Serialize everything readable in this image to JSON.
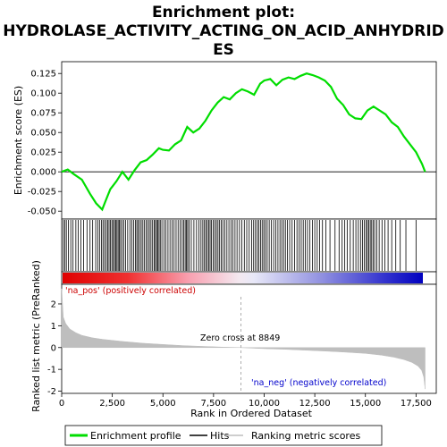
{
  "chart_data": {
    "type": "line",
    "title_lines": [
      "Enrichment plot:",
      "HYDROLASE_ACTIVITY_ACTING_ON_ACID_ANHYDRID",
      "ES"
    ],
    "ylabel_top": "Enrichment score (ES)",
    "ylabel_bottom": "Ranked list metric (PreRanked)",
    "xlabel": "Rank in Ordered Dataset",
    "xlim": [
      0,
      18500
    ],
    "ylim_es": [
      -0.06,
      0.14
    ],
    "ylim_metric": [
      -2.1,
      2.9
    ],
    "x_ticks": [
      0,
      2500,
      5000,
      7500,
      10000,
      12500,
      15000,
      17500
    ],
    "x_tick_labels": [
      "0",
      "2,500",
      "5,000",
      "7,500",
      "10,000",
      "12,500",
      "15,000",
      "17,500"
    ],
    "es_ticks": [
      -0.05,
      -0.025,
      0.0,
      0.025,
      0.05,
      0.075,
      0.1,
      0.125
    ],
    "es_tick_labels": [
      "-0.050",
      "-0.025",
      "0.000",
      "0.025",
      "0.050",
      "0.075",
      "0.100",
      "0.125"
    ],
    "metric_ticks": [
      -2,
      -1,
      0,
      1,
      2
    ],
    "metric_tick_labels": [
      "-2",
      "-1",
      "0",
      "1",
      "2"
    ],
    "enrichment_profile": {
      "name": "Enrichment profile",
      "color": "#00dd00",
      "x": [
        0,
        300,
        600,
        1000,
        1400,
        1700,
        2000,
        2200,
        2400,
        2700,
        3000,
        3300,
        3600,
        3900,
        4200,
        4500,
        4800,
        5000,
        5300,
        5600,
        5900,
        6200,
        6500,
        6800,
        7100,
        7400,
        7700,
        8000,
        8300,
        8600,
        8900,
        9200,
        9500,
        9800,
        10000,
        10300,
        10600,
        10900,
        11200,
        11500,
        11800,
        12100,
        12400,
        12700,
        13000,
        13300,
        13600,
        13900,
        14200,
        14500,
        14800,
        15100,
        15400,
        15700,
        16000,
        16300,
        16600,
        16900,
        17200,
        17500,
        17800,
        17950
      ],
      "y": [
        0.0,
        0.003,
        -0.003,
        -0.01,
        -0.028,
        -0.04,
        -0.048,
        -0.035,
        -0.022,
        -0.012,
        0.0,
        -0.01,
        0.002,
        0.012,
        0.015,
        0.022,
        0.03,
        0.028,
        0.027,
        0.035,
        0.04,
        0.057,
        0.05,
        0.055,
        0.065,
        0.078,
        0.088,
        0.095,
        0.092,
        0.1,
        0.105,
        0.102,
        0.098,
        0.112,
        0.116,
        0.118,
        0.11,
        0.117,
        0.12,
        0.118,
        0.122,
        0.125,
        0.123,
        0.12,
        0.116,
        0.108,
        0.093,
        0.085,
        0.073,
        0.068,
        0.067,
        0.078,
        0.083,
        0.078,
        0.073,
        0.063,
        0.057,
        0.045,
        0.035,
        0.025,
        0.01,
        0.0
      ]
    },
    "hits": {
      "name": "Hits",
      "color": "#000000",
      "positions": [
        80,
        150,
        230,
        330,
        450,
        560,
        700,
        820,
        950,
        1080,
        1250,
        1400,
        1530,
        1680,
        1780,
        1870,
        1960,
        2040,
        2120,
        2200,
        2270,
        2340,
        2410,
        2480,
        2550,
        2610,
        2670,
        2730,
        2790,
        2850,
        2910,
        2990,
        3070,
        3160,
        3260,
        3370,
        3470,
        3560,
        3640,
        3710,
        3780,
        3850,
        3930,
        4010,
        4090,
        4170,
        4250,
        4330,
        4410,
        4490,
        4570,
        4630,
        4690,
        4750,
        4810,
        4870,
        4950,
        5050,
        5150,
        5250,
        5350,
        5450,
        5550,
        5650,
        5750,
        5850,
        5950,
        6030,
        6100,
        6160,
        6220,
        6290,
        6400,
        6530,
        6660,
        6780,
        6880,
        6970,
        7050,
        7120,
        7190,
        7260,
        7330,
        7400,
        7480,
        7560,
        7640,
        7720,
        7800,
        7880,
        7960,
        8060,
        8160,
        8260,
        8360,
        8460,
        8560,
        8660,
        8780,
        8900,
        9020,
        9140,
        9260,
        9380,
        9480,
        9570,
        9660,
        9740,
        9820,
        9900,
        9980,
        10060,
        10150,
        10250,
        10360,
        10470,
        10580,
        10680,
        10780,
        10870,
        10960,
        11050,
        11150,
        11260,
        11380,
        11500,
        11620,
        11730,
        11830,
        11930,
        12030,
        12140,
        12260,
        12380,
        12500,
        12620,
        12740,
        12880,
        13050,
        13250,
        13500,
        13700,
        13850,
        13980,
        14100,
        14250,
        14400,
        14530,
        14650,
        14760,
        14860,
        14950,
        15030,
        15100,
        15170,
        15240,
        15310,
        15380,
        15460,
        15560,
        15680,
        15820,
        15960,
        16120,
        16300,
        16500,
        16720,
        17000,
        17500
      ]
    },
    "ranking_metric": {
      "name": "Ranking metric scores",
      "color": "#bebebe",
      "x": [
        0,
        80,
        200,
        400,
        700,
        1000,
        1500,
        2000,
        3000,
        4000,
        5000,
        6000,
        7000,
        8000,
        8849,
        9500,
        10000,
        11000,
        12000,
        13000,
        14000,
        15000,
        15800,
        16400,
        16900,
        17300,
        17600,
        17780,
        17880,
        17950
      ],
      "y": [
        2.7,
        1.4,
        1.1,
        0.85,
        0.68,
        0.56,
        0.45,
        0.38,
        0.28,
        0.2,
        0.14,
        0.09,
        0.05,
        0.02,
        0.0,
        -0.03,
        -0.05,
        -0.08,
        -0.12,
        -0.16,
        -0.21,
        -0.27,
        -0.35,
        -0.44,
        -0.55,
        -0.68,
        -0.85,
        -1.05,
        -1.35,
        -1.9
      ]
    },
    "zero_cross_rank": 8849,
    "annotations": {
      "zero_cross": "Zero cross at 8849",
      "pos": "'na_pos' (positively correlated)",
      "neg": "'na_neg' (negatively correlated)"
    },
    "legend": {
      "placement": "bottom",
      "items": [
        "Enrichment profile",
        "Hits",
        "Ranking metric scores"
      ]
    },
    "colors": {
      "pos_label": "#cc0000",
      "neg_label": "#0000cc",
      "heatmap_pos_strong": "#e00000",
      "heatmap_neg_strong": "#0000c0",
      "background": "#ffffff",
      "frame": "#000000"
    }
  }
}
